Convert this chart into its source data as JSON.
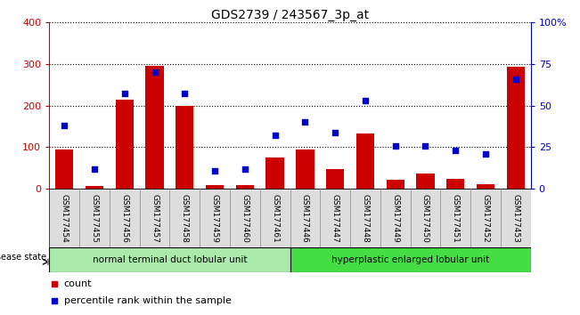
{
  "title": "GDS2739 / 243567_3p_at",
  "categories": [
    "GSM177454",
    "GSM177455",
    "GSM177456",
    "GSM177457",
    "GSM177458",
    "GSM177459",
    "GSM177460",
    "GSM177461",
    "GSM177446",
    "GSM177447",
    "GSM177448",
    "GSM177449",
    "GSM177450",
    "GSM177451",
    "GSM177452",
    "GSM177453"
  ],
  "counts": [
    95,
    8,
    215,
    295,
    200,
    10,
    10,
    75,
    95,
    47,
    133,
    22,
    37,
    25,
    12,
    292
  ],
  "percentiles": [
    38,
    12,
    57,
    70,
    57,
    11,
    12,
    32,
    40,
    34,
    53,
    26,
    26,
    23,
    21,
    66
  ],
  "group1_label": "normal terminal duct lobular unit",
  "group2_label": "hyperplastic enlarged lobular unit",
  "group1_count": 8,
  "group2_count": 8,
  "ylim_left": [
    0,
    400
  ],
  "ylim_right": [
    0,
    100
  ],
  "yticks_left": [
    0,
    100,
    200,
    300,
    400
  ],
  "yticks_right": [
    0,
    25,
    50,
    75,
    100
  ],
  "ytick_labels_right": [
    "0",
    "25",
    "50",
    "75",
    "100%"
  ],
  "bar_color": "#cc0000",
  "dot_color": "#0000cc",
  "tick_bg": "#cccccc",
  "group1_bg": "#aaeaaa",
  "group2_bg": "#44dd44",
  "legend_count_label": "count",
  "legend_pct_label": "percentile rank within the sample",
  "title_fontsize": 10,
  "axis_fontsize": 8,
  "tick_fontsize": 6.5
}
